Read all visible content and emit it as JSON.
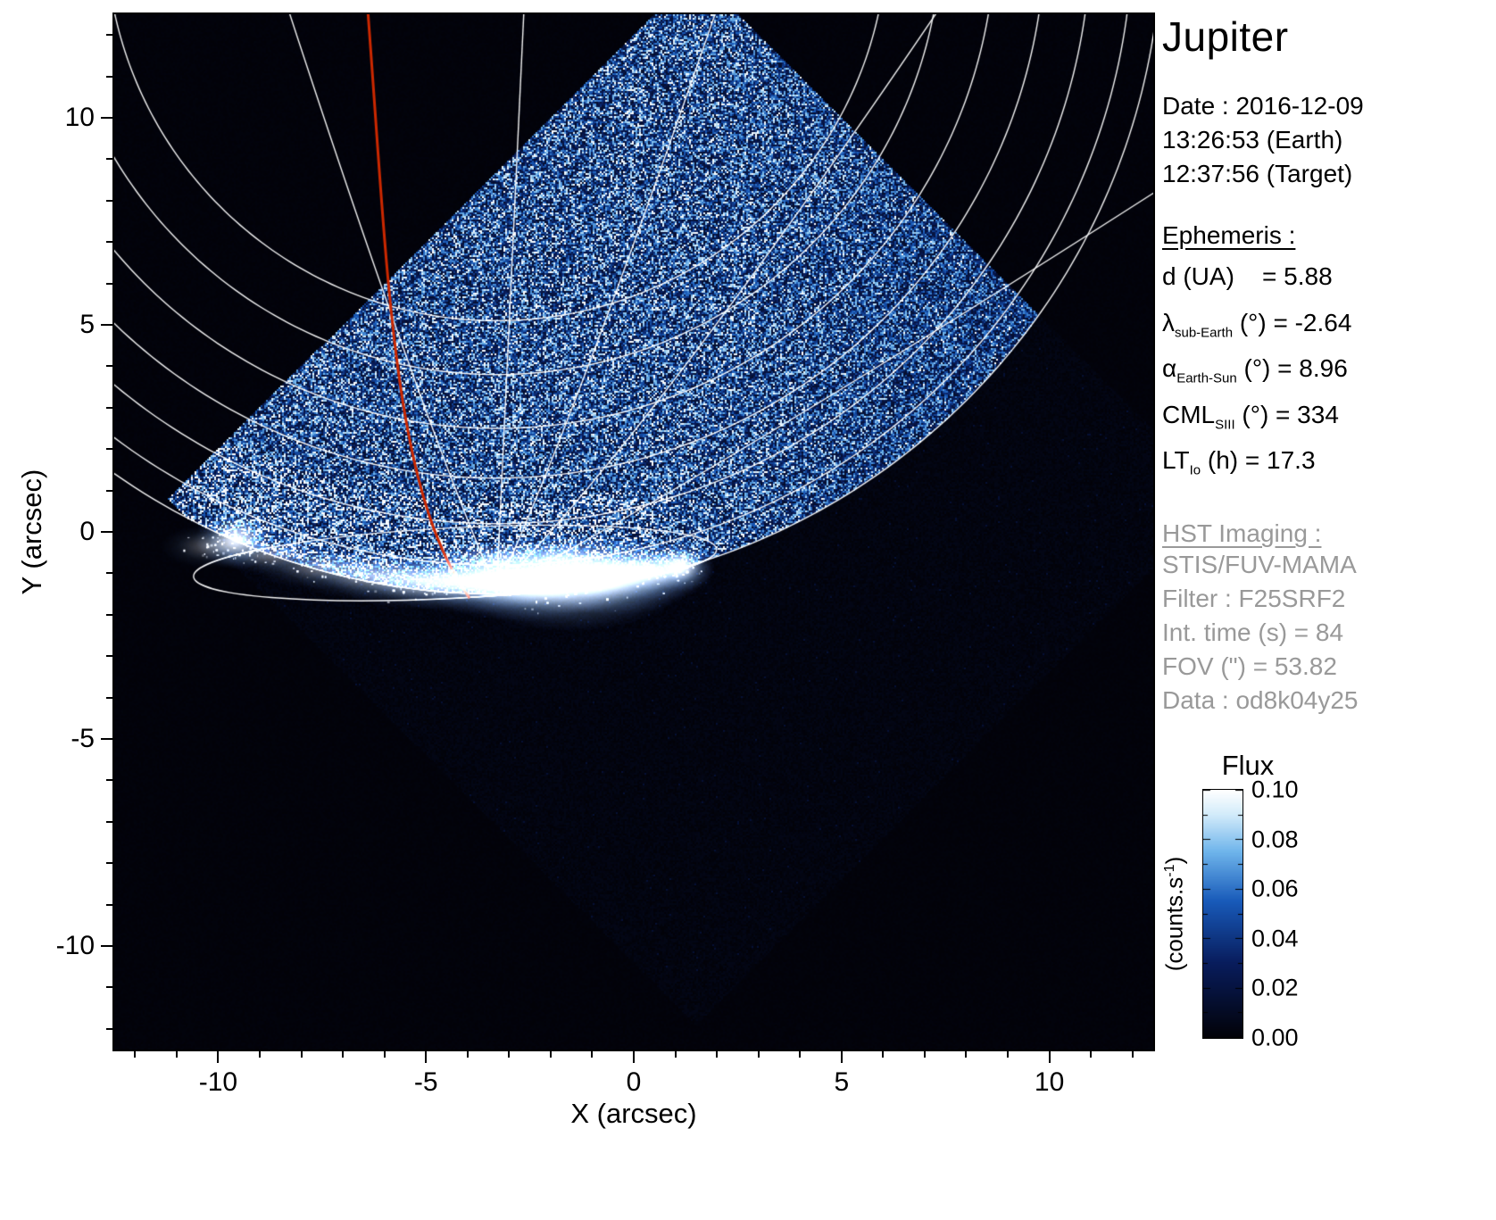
{
  "title": "Jupiter",
  "observation": {
    "date_line": "Date : 2016-12-09",
    "earth_time": "13:26:53 (Earth)",
    "target_time": "12:37:56 (Target)"
  },
  "ephemeris": {
    "heading": "Ephemeris :",
    "rows": [
      {
        "symbol": "d",
        "sub": "",
        "rest": " (UA)    = 5.88"
      },
      {
        "symbol": "λ",
        "sub": "sub-Earth",
        "rest": " (°) = -2.64"
      },
      {
        "symbol": "α",
        "sub": "Earth-Sun",
        "rest": " (°) = 8.96"
      },
      {
        "symbol": "CML",
        "sub": "SIII",
        "rest": " (°) = 334"
      },
      {
        "symbol": "LT",
        "sub": "Io",
        "rest": " (h) = 17.3"
      }
    ]
  },
  "hst": {
    "heading": "HST Imaging :",
    "lines": [
      "STIS/FUV-MAMA",
      "Filter : F25SRF2",
      "Int. time (s) = 84",
      "FOV (\") = 53.82",
      "Data : od8k04y25"
    ]
  },
  "colorbar": {
    "title": "Flux",
    "unit_prefix": "(counts.s",
    "unit_sup": "-1",
    "unit_suffix": ")",
    "ticks": [
      "0.10",
      "0.08",
      "0.06",
      "0.04",
      "0.02",
      "0.00"
    ]
  },
  "chart_data": {
    "type": "heatmap",
    "title": "Jupiter FUV auroral image, HST STIS/FUV-MAMA, 2016-12-09",
    "xlabel": "X (arcsec)",
    "ylabel": "Y (arcsec)",
    "xlim": [
      -12.5,
      12.5
    ],
    "ylim": [
      -12.5,
      12.5
    ],
    "xticks": [
      -10,
      -5,
      0,
      5,
      10
    ],
    "yticks": [
      -10,
      -5,
      0,
      5,
      10
    ],
    "grid": false,
    "colorbar_range": [
      0.0,
      0.1
    ],
    "colorbar_ticks": [
      0.0,
      0.02,
      0.04,
      0.06,
      0.08,
      0.1
    ],
    "colorbar_label": "Flux (counts.s-1)",
    "colors": {
      "background": "#000000",
      "graticule": "#ffffff",
      "red_track": "#cc2800"
    },
    "palette_stops": [
      [
        0.0,
        "#020208"
      ],
      [
        0.3,
        "#081c5c"
      ],
      [
        0.55,
        "#185ab9"
      ],
      [
        0.75,
        "#6eb4eb"
      ],
      [
        0.9,
        "#d2ebfa"
      ],
      [
        1.0,
        "#ffffff"
      ]
    ],
    "features": {
      "detector": {
        "center": [
          1.5,
          0.8
        ],
        "half_diagonal": 12.7
      },
      "planet_disk": {
        "center": [
          -3.3,
          14.5
        ],
        "radius": 16.0
      },
      "graticule": {
        "parallel_radii": [
          9.4,
          10.7,
          12.0,
          13.2,
          14.3,
          15.3,
          16.0
        ],
        "pole": [
          -3.3,
          -1.4
        ],
        "meridians": [
          {
            "ctrl": [
              -5.2,
              3.0
            ],
            "end": [
              -8.6,
              13.5
            ]
          },
          {
            "ctrl": [
              -3.1,
              3.2
            ],
            "end": [
              -2.6,
              13.5
            ]
          },
          {
            "ctrl": [
              -1.3,
              3.0
            ],
            "end": [
              2.3,
              13.5
            ]
          },
          {
            "ctrl": [
              0.6,
              2.6
            ],
            "end": [
              7.6,
              13.0
            ]
          },
          {
            "ctrl": [
              2.6,
              1.8
            ],
            "end": [
              13.0,
              8.5
            ]
          }
        ]
      },
      "auroral_oval": {
        "cx": -4.3,
        "cy": -0.75,
        "rx": 6.3,
        "ry": 0.85,
        "rot": -3
      },
      "red_track": {
        "start": [
          -6.4,
          12.6
        ],
        "c1": [
          -5.9,
          6.0
        ],
        "c2": [
          -5.8,
          1.0
        ],
        "end": [
          -3.95,
          -1.6
        ]
      },
      "aurora": [
        {
          "x": -10.2,
          "y": -0.35,
          "rx": 0.5,
          "ry": 0.22,
          "i": 0.35
        },
        {
          "x": -9.55,
          "y": -0.18,
          "rx": 0.42,
          "ry": 0.3,
          "i": 1.0
        },
        {
          "x": -8.7,
          "y": -0.55,
          "rx": 0.55,
          "ry": 0.2,
          "i": 0.45
        },
        {
          "x": -7.5,
          "y": -0.85,
          "rx": 0.7,
          "ry": 0.22,
          "i": 0.45
        },
        {
          "x": -6.3,
          "y": -1.05,
          "rx": 0.8,
          "ry": 0.25,
          "i": 0.55
        },
        {
          "x": -5.1,
          "y": -1.2,
          "rx": 0.9,
          "ry": 0.28,
          "i": 0.65
        },
        {
          "x": -3.9,
          "y": -1.2,
          "rx": 1.0,
          "ry": 0.32,
          "i": 0.8
        },
        {
          "x": -2.7,
          "y": -1.25,
          "rx": 1.0,
          "ry": 0.38,
          "i": 0.9
        },
        {
          "x": -1.55,
          "y": -1.2,
          "rx": 1.15,
          "ry": 0.5,
          "i": 1.0
        },
        {
          "x": -0.5,
          "y": -1.05,
          "rx": 0.9,
          "ry": 0.4,
          "i": 0.95
        },
        {
          "x": 0.5,
          "y": -0.95,
          "rx": 0.6,
          "ry": 0.3,
          "i": 0.75
        },
        {
          "x": 1.15,
          "y": -0.82,
          "rx": 0.33,
          "ry": 0.26,
          "i": 0.95
        },
        {
          "x": -3.3,
          "y": -0.7,
          "rx": 0.9,
          "ry": 0.25,
          "i": 0.45
        },
        {
          "x": -1.8,
          "y": -0.6,
          "rx": 0.8,
          "ry": 0.22,
          "i": 0.4
        }
      ]
    }
  }
}
